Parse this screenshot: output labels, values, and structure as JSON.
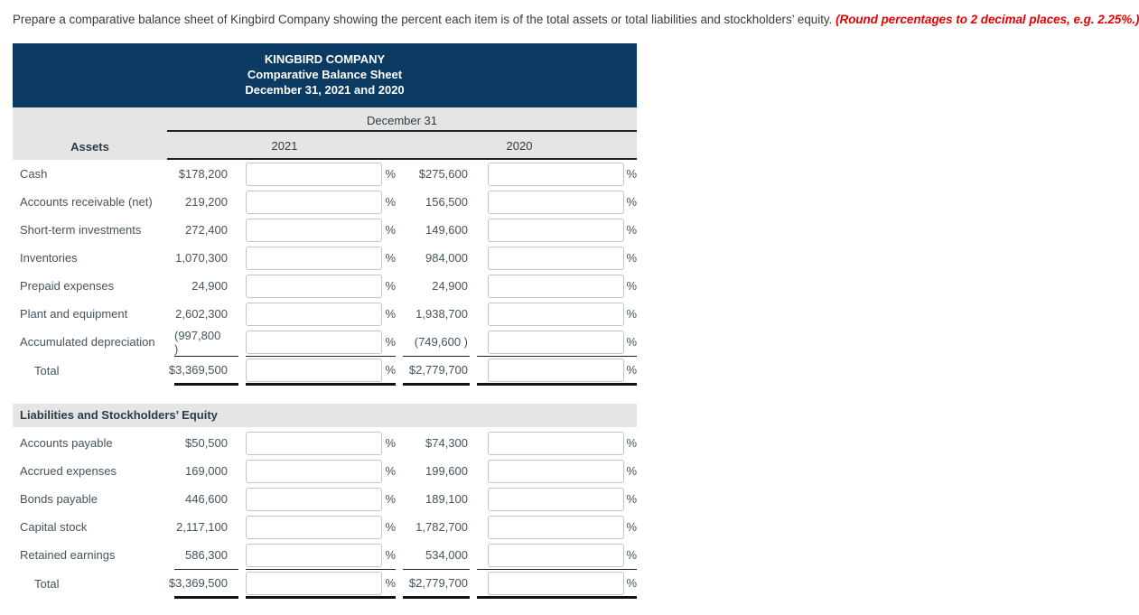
{
  "instruction": {
    "text": "Prepare a comparative balance sheet of Kingbird Company showing the percent each item is of the total assets or total liabilities and stockholders’ equity. ",
    "emphasis": "(Round percentages to 2 decimal places, e.g. 2.25%.)"
  },
  "statement_header": {
    "company": "KINGBIRD COMPANY",
    "title": "Comparative Balance Sheet",
    "period": "December 31, 2021 and 2020"
  },
  "table": {
    "date_header": "December 31",
    "years": [
      "2021",
      "2020"
    ],
    "percent_symbol": "%",
    "assets": {
      "section_label": "Assets",
      "rows": [
        {
          "label": "Cash",
          "v2021": "$178,200",
          "pct2021": "",
          "v2020": "$275,600",
          "pct2020": ""
        },
        {
          "label": "Accounts receivable (net)",
          "v2021": "219,200",
          "pct2021": "",
          "v2020": "156,500",
          "pct2020": ""
        },
        {
          "label": "Short-term investments",
          "v2021": "272,400",
          "pct2021": "",
          "v2020": "149,600",
          "pct2020": ""
        },
        {
          "label": "Inventories",
          "v2021": "1,070,300",
          "pct2021": "",
          "v2020": "984,000",
          "pct2020": ""
        },
        {
          "label": "Prepaid expenses",
          "v2021": "24,900",
          "pct2021": "",
          "v2020": "24,900",
          "pct2020": ""
        },
        {
          "label": "Plant and equipment",
          "v2021": "2,602,300",
          "pct2021": "",
          "v2020": "1,938,700",
          "pct2020": ""
        },
        {
          "label": "Accumulated depreciation",
          "v2021": "(997,800 )",
          "pct2021": "",
          "v2020": "(749,600 )",
          "pct2020": ""
        }
      ],
      "total": {
        "label": "Total",
        "v2021": "$3,369,500",
        "pct2021": "",
        "v2020": "$2,779,700",
        "pct2020": ""
      }
    },
    "liabilities": {
      "section_label": "Liabilities and Stockholders’ Equity",
      "rows": [
        {
          "label": "Accounts payable",
          "v2021": "$50,500",
          "pct2021": "",
          "v2020": "$74,300",
          "pct2020": ""
        },
        {
          "label": "Accrued expenses",
          "v2021": "169,000",
          "pct2021": "",
          "v2020": "199,600",
          "pct2020": ""
        },
        {
          "label": "Bonds payable",
          "v2021": "446,600",
          "pct2021": "",
          "v2020": "189,100",
          "pct2020": ""
        },
        {
          "label": "Capital stock",
          "v2021": "2,117,100",
          "pct2021": "",
          "v2020": "1,782,700",
          "pct2020": ""
        },
        {
          "label": "Retained earnings",
          "v2021": "586,300",
          "pct2021": "",
          "v2020": "534,000",
          "pct2020": ""
        }
      ],
      "total": {
        "label": "Total",
        "v2021": "$3,369,500",
        "pct2021": "",
        "v2020": "$2,779,700",
        "pct2020": ""
      }
    }
  },
  "colors": {
    "header_bg": "#0b3a63",
    "band_bg": "#e5e5e5",
    "accent_red": "#e60000",
    "text": "#45535e"
  }
}
